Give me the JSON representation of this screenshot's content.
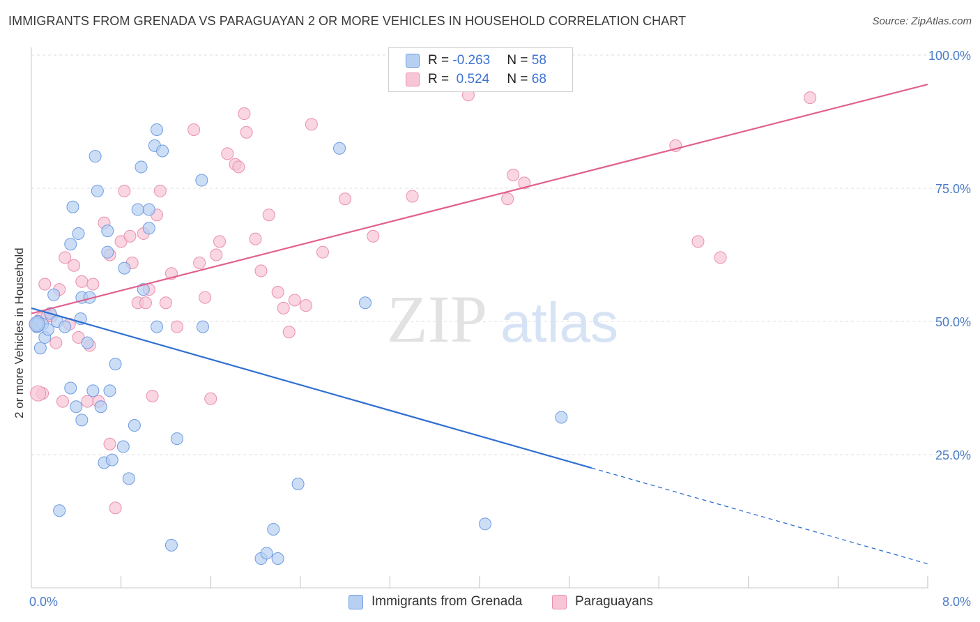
{
  "title": "IMMIGRANTS FROM GRENADA VS PARAGUAYAN 2 OR MORE VEHICLES IN HOUSEHOLD CORRELATION CHART",
  "source": "Source: ZipAtlas.com",
  "watermark": {
    "zip": "ZIP",
    "atlas": "atlas"
  },
  "colors": {
    "blue_fill": "#b7d0f2",
    "blue_stroke": "#6f9be0",
    "blue_line": "#2f6fd1",
    "pink_fill": "#f7c5d5",
    "pink_stroke": "#ea8fae",
    "pink_line": "#e2608e",
    "tick_text": "#4a7cc8",
    "grid": "#dcdcdc"
  },
  "legend": {
    "rows": [
      {
        "r_label": "R = ",
        "r_value": "-0.263",
        "n_label": "N = ",
        "n_value": "58"
      },
      {
        "r_label": "R = ",
        "r_value": " 0.524",
        "n_label": "N = ",
        "n_value": "68"
      }
    ]
  },
  "bottom_legend": [
    "Immigrants from Grenada",
    "Paraguayans"
  ],
  "chart_data": {
    "type": "scatter",
    "title": "IMMIGRANTS FROM GRENADA VS PARAGUAYAN 2 OR MORE VEHICLES IN HOUSEHOLD CORRELATION CHART",
    "xlabel": "",
    "ylabel": "2 or more Vehicles in Household",
    "xlim": [
      0,
      8
    ],
    "ylim": [
      0,
      100
    ],
    "x_tick_labels": [
      "0.0%",
      "8.0%"
    ],
    "y_tick_labels": [
      "25.0%",
      "50.0%",
      "75.0%",
      "100.0%"
    ],
    "y_tick_values": [
      25,
      50,
      75,
      100
    ],
    "x_minor_ticks": [
      0.8,
      1.6,
      2.4,
      3.2,
      4.0,
      4.8,
      5.6,
      6.4,
      7.2
    ],
    "grid": true,
    "legend_placement": "top-center",
    "series": [
      {
        "name": "Immigrants from Grenada",
        "color": "blue",
        "trend": {
          "x": [
            0.0,
            5.0
          ],
          "y": [
            52.5,
            22.5
          ],
          "dashed_extension_to": [
            8.0,
            4.5
          ]
        },
        "points": [
          [
            0.05,
            49.0
          ],
          [
            0.06,
            50.0
          ],
          [
            0.08,
            45.0
          ],
          [
            0.1,
            49.5
          ],
          [
            0.12,
            47.0
          ],
          [
            0.15,
            48.5
          ],
          [
            0.17,
            51.5
          ],
          [
            0.2,
            55.0
          ],
          [
            0.23,
            50.0
          ],
          [
            0.3,
            49.0
          ],
          [
            0.35,
            64.5
          ],
          [
            0.37,
            71.5
          ],
          [
            0.42,
            66.5
          ],
          [
            0.44,
            50.5
          ],
          [
            0.45,
            54.5
          ],
          [
            0.5,
            46.0
          ],
          [
            0.52,
            54.5
          ],
          [
            0.57,
            81.0
          ],
          [
            0.59,
            74.5
          ],
          [
            0.68,
            67.0
          ],
          [
            0.68,
            63.0
          ],
          [
            0.75,
            42.0
          ],
          [
            0.83,
            60.0
          ],
          [
            0.95,
            71.0
          ],
          [
            0.98,
            79.0
          ],
          [
            1.05,
            71.0
          ],
          [
            1.05,
            67.5
          ],
          [
            1.1,
            83.0
          ],
          [
            1.12,
            86.0
          ],
          [
            1.17,
            82.0
          ],
          [
            0.35,
            37.5
          ],
          [
            0.4,
            34.0
          ],
          [
            0.45,
            31.5
          ],
          [
            0.55,
            37.0
          ],
          [
            0.62,
            34.0
          ],
          [
            0.65,
            23.5
          ],
          [
            0.7,
            37.0
          ],
          [
            0.72,
            24.0
          ],
          [
            0.82,
            26.5
          ],
          [
            0.87,
            20.5
          ],
          [
            0.92,
            30.5
          ],
          [
            1.0,
            56.0
          ],
          [
            1.12,
            49.0
          ],
          [
            1.25,
            8.0
          ],
          [
            1.3,
            28.0
          ],
          [
            1.53,
            49.0
          ],
          [
            1.52,
            76.5
          ],
          [
            0.25,
            14.5
          ],
          [
            2.05,
            5.5
          ],
          [
            2.1,
            6.5
          ],
          [
            2.16,
            11.0
          ],
          [
            2.2,
            5.5
          ],
          [
            2.38,
            19.5
          ],
          [
            2.75,
            82.5
          ],
          [
            2.98,
            53.5
          ],
          [
            4.05,
            12.0
          ],
          [
            4.73,
            32.0
          ],
          [
            0.05,
            49.5
          ]
        ]
      },
      {
        "name": "Paraguayans",
        "color": "pink",
        "trend": {
          "x": [
            0.0,
            8.0
          ],
          "y": [
            51.5,
            94.5
          ]
        },
        "points": [
          [
            0.04,
            49.5
          ],
          [
            0.08,
            50.5
          ],
          [
            0.1,
            36.5
          ],
          [
            0.12,
            57.0
          ],
          [
            0.14,
            51.0
          ],
          [
            0.18,
            51.0
          ],
          [
            0.22,
            46.0
          ],
          [
            0.25,
            56.0
          ],
          [
            0.3,
            62.0
          ],
          [
            0.34,
            49.5
          ],
          [
            0.38,
            60.5
          ],
          [
            0.42,
            47.0
          ],
          [
            0.45,
            57.5
          ],
          [
            0.5,
            35.0
          ],
          [
            0.52,
            45.5
          ],
          [
            0.55,
            57.0
          ],
          [
            0.6,
            35.0
          ],
          [
            0.65,
            68.5
          ],
          [
            0.7,
            62.5
          ],
          [
            0.7,
            27.0
          ],
          [
            0.75,
            15.0
          ],
          [
            0.8,
            65.0
          ],
          [
            0.83,
            74.5
          ],
          [
            0.88,
            66.0
          ],
          [
            0.9,
            61.0
          ],
          [
            0.95,
            53.5
          ],
          [
            1.0,
            66.5
          ],
          [
            1.02,
            53.5
          ],
          [
            1.05,
            56.0
          ],
          [
            1.08,
            36.0
          ],
          [
            1.12,
            70.0
          ],
          [
            1.15,
            74.5
          ],
          [
            1.2,
            53.5
          ],
          [
            1.25,
            59.0
          ],
          [
            1.3,
            49.0
          ],
          [
            1.45,
            86.0
          ],
          [
            1.5,
            61.0
          ],
          [
            1.55,
            54.5
          ],
          [
            1.6,
            35.5
          ],
          [
            1.65,
            62.5
          ],
          [
            1.68,
            65.0
          ],
          [
            1.75,
            81.5
          ],
          [
            1.82,
            79.5
          ],
          [
            1.85,
            79.0
          ],
          [
            1.9,
            89.0
          ],
          [
            1.92,
            85.5
          ],
          [
            2.0,
            65.5
          ],
          [
            2.05,
            59.5
          ],
          [
            2.12,
            70.0
          ],
          [
            2.2,
            55.5
          ],
          [
            2.25,
            52.5
          ],
          [
            2.3,
            48.0
          ],
          [
            2.35,
            54.0
          ],
          [
            2.45,
            53.0
          ],
          [
            2.5,
            87.0
          ],
          [
            2.6,
            63.0
          ],
          [
            2.8,
            73.0
          ],
          [
            3.05,
            66.0
          ],
          [
            3.4,
            73.5
          ],
          [
            3.9,
            92.5
          ],
          [
            4.25,
            73.0
          ],
          [
            4.3,
            77.5
          ],
          [
            4.4,
            76.0
          ],
          [
            5.75,
            83.0
          ],
          [
            5.95,
            65.0
          ],
          [
            6.15,
            62.0
          ],
          [
            6.95,
            92.0
          ],
          [
            0.28,
            35.0
          ]
        ]
      }
    ]
  }
}
